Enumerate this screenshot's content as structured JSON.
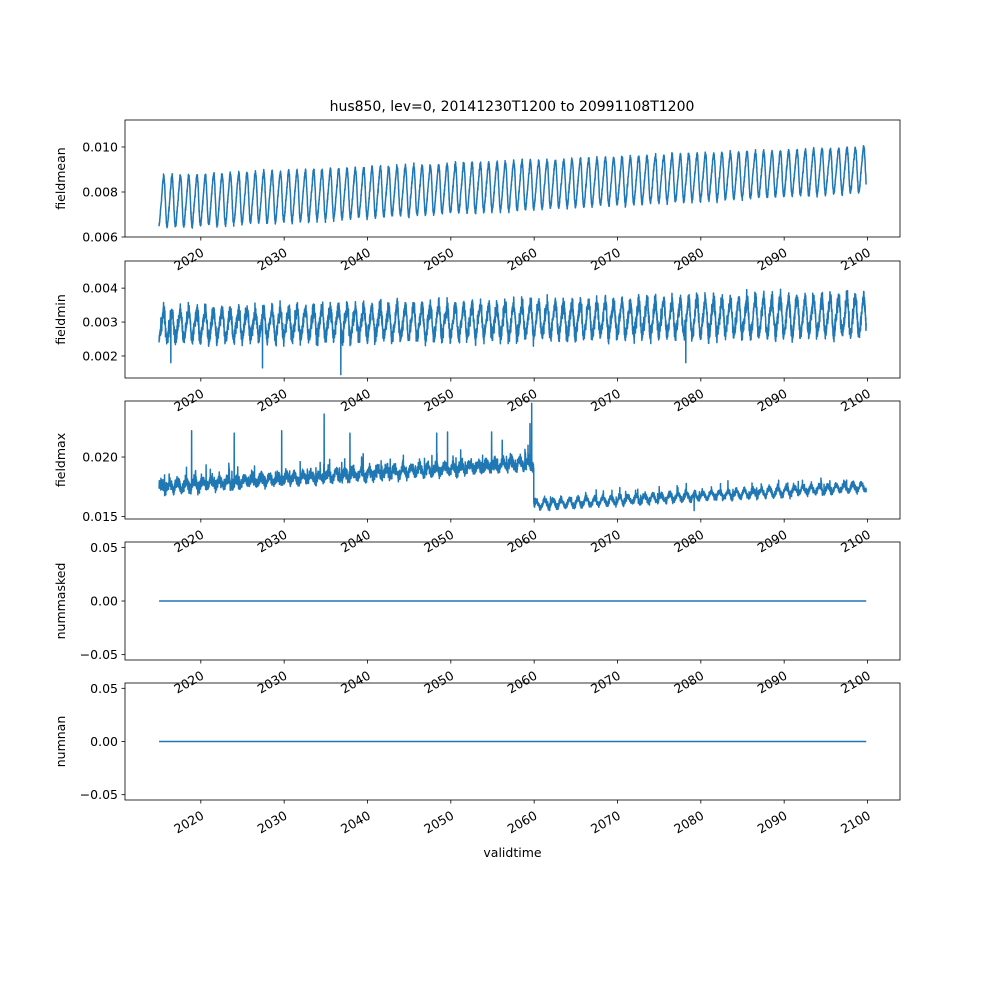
{
  "figure_title": "hus850, lev=0, 20141230T1200 to 20991108T1200",
  "line_color": "#1f77b4",
  "chart_data": [
    {
      "type": "line",
      "ylabel": "fieldmean",
      "xlabel": "",
      "xlim": [
        2010.9,
        2103.9
      ],
      "ylim": [
        0.006,
        0.0112
      ],
      "yticks": [
        0.006,
        0.008,
        0.01
      ],
      "ytick_labels": [
        "0.006",
        "0.008",
        "0.010"
      ],
      "xticks": [
        2020,
        2030,
        2040,
        2050,
        2060,
        2070,
        2080,
        2090,
        2100
      ],
      "xtick_labels": [
        "2020",
        "2030",
        "2040",
        "2050",
        "2060",
        "2070",
        "2080",
        "2090",
        "2100"
      ],
      "x_start": 2014.99,
      "x_end": 2099.85,
      "series": [
        {
          "pattern": "seasonal",
          "base_start": 0.00755,
          "base_end": 0.009,
          "amplitude_start": 0.00125,
          "amplitude_end": 0.0011,
          "noise": 0.00018,
          "periods_per_year": 1
        }
      ]
    },
    {
      "type": "line",
      "ylabel": "fieldmin",
      "xlabel": "",
      "xlim": [
        2010.9,
        2103.9
      ],
      "ylim": [
        0.00135,
        0.0048
      ],
      "yticks": [
        0.002,
        0.003,
        0.004
      ],
      "ytick_labels": [
        "0.002",
        "0.003",
        "0.004"
      ],
      "xticks": [
        2020,
        2030,
        2040,
        2050,
        2060,
        2070,
        2080,
        2090,
        2100
      ],
      "xtick_labels": [
        "2020",
        "2030",
        "2040",
        "2050",
        "2060",
        "2070",
        "2080",
        "2090",
        "2100"
      ],
      "x_start": 2014.99,
      "x_end": 2099.85,
      "series": [
        {
          "pattern": "seasonal",
          "base_start": 0.0029,
          "base_end": 0.0032,
          "amplitude_start": 0.00045,
          "amplitude_end": 0.0006,
          "noise": 0.00035,
          "periods_per_year": 1,
          "dips": [
            {
              "x": 2016.4,
              "y": 0.0018
            },
            {
              "x": 2027.4,
              "y": 0.00165
            },
            {
              "x": 2036.8,
              "y": 0.00145
            },
            {
              "x": 2078.2,
              "y": 0.0018
            }
          ]
        }
      ]
    },
    {
      "type": "line",
      "ylabel": "fieldmax",
      "xlabel": "",
      "xlim": [
        2010.9,
        2103.9
      ],
      "ylim": [
        0.0148,
        0.0247
      ],
      "yticks": [
        0.015,
        0.02
      ],
      "ytick_labels": [
        "0.015",
        "0.020"
      ],
      "xticks": [
        2020,
        2030,
        2040,
        2050,
        2060,
        2070,
        2080,
        2090,
        2100
      ],
      "xtick_labels": [
        "2020",
        "2030",
        "2040",
        "2050",
        "2060",
        "2070",
        "2080",
        "2090",
        "2100"
      ],
      "x_start": 2014.99,
      "x_end": 2099.85,
      "series": [
        {
          "pattern": "regime",
          "segments": [
            {
              "x0": 2014.99,
              "x1": 2059.95,
              "base_start": 0.0175,
              "base_end": 0.0195,
              "noise": 0.0007
            },
            {
              "x0": 2059.95,
              "x1": 2099.85,
              "base_start": 0.016,
              "base_end": 0.0175,
              "noise": 0.0004
            }
          ],
          "spikes": [
            {
              "x": 2018.9,
              "y": 0.0222
            },
            {
              "x": 2024.0,
              "y": 0.022
            },
            {
              "x": 2029.7,
              "y": 0.0222
            },
            {
              "x": 2034.8,
              "y": 0.0236
            },
            {
              "x": 2037.9,
              "y": 0.022
            },
            {
              "x": 2048.3,
              "y": 0.022
            },
            {
              "x": 2049.6,
              "y": 0.0221
            },
            {
              "x": 2054.9,
              "y": 0.0221
            },
            {
              "x": 2059.5,
              "y": 0.0228
            },
            {
              "x": 2059.7,
              "y": 0.0245
            },
            {
              "x": 2079.2,
              "y": 0.0155
            }
          ]
        }
      ]
    },
    {
      "type": "line",
      "ylabel": "nummasked",
      "xlabel": "",
      "xlim": [
        2010.9,
        2103.9
      ],
      "ylim": [
        -0.055,
        0.055
      ],
      "yticks": [
        -0.05,
        0.0,
        0.05
      ],
      "ytick_labels": [
        "−0.05",
        "0.00",
        "0.05"
      ],
      "xticks": [
        2020,
        2030,
        2040,
        2050,
        2060,
        2070,
        2080,
        2090,
        2100
      ],
      "xtick_labels": [
        "2020",
        "2030",
        "2040",
        "2050",
        "2060",
        "2070",
        "2080",
        "2090",
        "2100"
      ],
      "x_start": 2014.99,
      "x_end": 2099.85,
      "series": [
        {
          "pattern": "constant",
          "value": 0
        }
      ]
    },
    {
      "type": "line",
      "ylabel": "numnan",
      "xlabel": "validtime",
      "xlim": [
        2010.9,
        2103.9
      ],
      "ylim": [
        -0.055,
        0.055
      ],
      "yticks": [
        -0.05,
        0.0,
        0.05
      ],
      "ytick_labels": [
        "−0.05",
        "0.00",
        "0.05"
      ],
      "xticks": [
        2020,
        2030,
        2040,
        2050,
        2060,
        2070,
        2080,
        2090,
        2100
      ],
      "xtick_labels": [
        "2020",
        "2030",
        "2040",
        "2050",
        "2060",
        "2070",
        "2080",
        "2090",
        "2100"
      ],
      "x_start": 2014.99,
      "x_end": 2099.85,
      "series": [
        {
          "pattern": "constant",
          "value": 0
        }
      ]
    }
  ]
}
